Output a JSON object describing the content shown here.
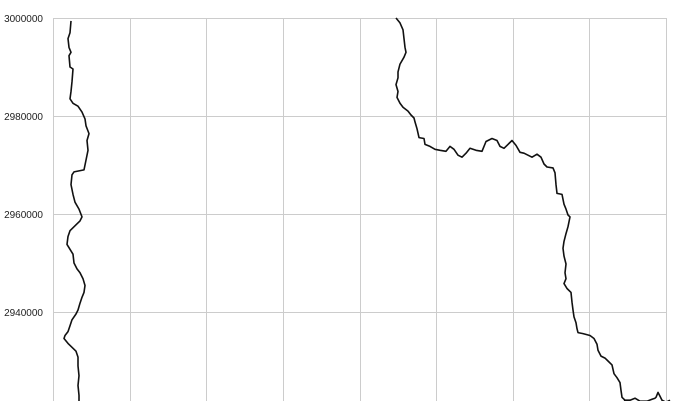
{
  "map": {
    "y_axis": {
      "range": [
        2920400,
        3000000
      ],
      "ticks": [
        {
          "value": 3000000,
          "label": "3000000"
        },
        {
          "value": 2980000,
          "label": "2980000"
        },
        {
          "value": 2960000,
          "label": "2960000"
        },
        {
          "value": 2940000,
          "label": "2940000"
        }
      ]
    },
    "x_axis": {
      "gridline_count": 8
    },
    "grid": true,
    "colors": {
      "grid": "#cccccc",
      "boundary": "#111111",
      "background": "#ffffff"
    },
    "boundaries": [
      {
        "id": "left-boundary",
        "points": [
          [
            71,
            2999400
          ],
          [
            70,
            2997000
          ],
          [
            68,
            2995800
          ],
          [
            69,
            2994000
          ],
          [
            71,
            2993000
          ],
          [
            69,
            2992300
          ],
          [
            70,
            2990000
          ],
          [
            73,
            2989600
          ],
          [
            72,
            2987000
          ],
          [
            71,
            2985000
          ],
          [
            70,
            2983500
          ],
          [
            73,
            2982600
          ],
          [
            78,
            2982000
          ],
          [
            82,
            2980800
          ],
          [
            85,
            2979400
          ],
          [
            86,
            2978000
          ],
          [
            89,
            2976400
          ],
          [
            87,
            2975000
          ],
          [
            88,
            2973000
          ],
          [
            86,
            2971000
          ],
          [
            84,
            2969000
          ],
          [
            74,
            2968600
          ],
          [
            72,
            2968000
          ],
          [
            71,
            2966000
          ],
          [
            73,
            2964000
          ],
          [
            75,
            2962400
          ],
          [
            79,
            2961000
          ],
          [
            82,
            2959400
          ],
          [
            80,
            2958600
          ],
          [
            76,
            2957800
          ],
          [
            70,
            2956600
          ],
          [
            68,
            2955400
          ],
          [
            67,
            2953800
          ],
          [
            70,
            2952800
          ],
          [
            73,
            2951800
          ],
          [
            74,
            2950000
          ],
          [
            77,
            2948800
          ],
          [
            80,
            2948000
          ],
          [
            83,
            2946800
          ],
          [
            85,
            2945400
          ],
          [
            84,
            2944000
          ],
          [
            82,
            2943000
          ],
          [
            80,
            2941800
          ],
          [
            78,
            2940400
          ],
          [
            76,
            2939600
          ],
          [
            72,
            2938400
          ],
          [
            70,
            2937200
          ],
          [
            68,
            2936000
          ],
          [
            65,
            2935200
          ],
          [
            64,
            2934600
          ],
          [
            68,
            2933600
          ],
          [
            72,
            2932800
          ],
          [
            76,
            2932000
          ],
          [
            78,
            2930800
          ],
          [
            78,
            2929000
          ],
          [
            79,
            2927000
          ],
          [
            78,
            2925000
          ],
          [
            79,
            2923000
          ],
          [
            79,
            2920400
          ]
        ]
      },
      {
        "id": "right-boundary",
        "points": [
          [
            396,
            3000000
          ],
          [
            400,
            2999000
          ],
          [
            403,
            2997600
          ],
          [
            404,
            2995800
          ],
          [
            405,
            2994000
          ],
          [
            406,
            2993000
          ],
          [
            404,
            2992000
          ],
          [
            400,
            2990600
          ],
          [
            398,
            2989000
          ],
          [
            398,
            2987800
          ],
          [
            396,
            2986400
          ],
          [
            398,
            2985000
          ],
          [
            397,
            2983800
          ],
          [
            400,
            2982600
          ],
          [
            403,
            2981800
          ],
          [
            408,
            2981000
          ],
          [
            411,
            2980200
          ],
          [
            414,
            2979600
          ],
          [
            415,
            2978800
          ],
          [
            417,
            2977400
          ],
          [
            419,
            2975600
          ],
          [
            424,
            2975400
          ],
          [
            425,
            2974200
          ],
          [
            430,
            2973800
          ],
          [
            435,
            2973200
          ],
          [
            440,
            2973000
          ],
          [
            446,
            2972800
          ],
          [
            450,
            2973800
          ],
          [
            454,
            2973200
          ],
          [
            458,
            2972000
          ],
          [
            462,
            2971600
          ],
          [
            466,
            2972400
          ],
          [
            470,
            2973400
          ],
          [
            476,
            2973000
          ],
          [
            482,
            2972800
          ],
          [
            486,
            2974800
          ],
          [
            492,
            2975400
          ],
          [
            497,
            2975000
          ],
          [
            500,
            2973800
          ],
          [
            504,
            2973400
          ],
          [
            508,
            2974200
          ],
          [
            512,
            2975000
          ],
          [
            516,
            2974000
          ],
          [
            520,
            2972600
          ],
          [
            524,
            2972400
          ],
          [
            528,
            2972000
          ],
          [
            532,
            2971600
          ],
          [
            537,
            2972200
          ],
          [
            541,
            2971600
          ],
          [
            544,
            2970200
          ],
          [
            547,
            2969600
          ],
          [
            553,
            2969400
          ],
          [
            555,
            2968400
          ],
          [
            556,
            2966000
          ],
          [
            557,
            2964200
          ],
          [
            562,
            2964000
          ],
          [
            564,
            2962000
          ],
          [
            566,
            2961000
          ],
          [
            568,
            2959800
          ],
          [
            570,
            2959400
          ],
          [
            568,
            2957400
          ],
          [
            566,
            2956000
          ],
          [
            564,
            2954400
          ],
          [
            563,
            2953000
          ],
          [
            564,
            2951400
          ],
          [
            566,
            2949800
          ],
          [
            565,
            2948000
          ],
          [
            566,
            2946800
          ],
          [
            564,
            2945800
          ],
          [
            567,
            2944800
          ],
          [
            571,
            2944000
          ],
          [
            572,
            2942000
          ],
          [
            573,
            2940400
          ],
          [
            574,
            2939000
          ],
          [
            576,
            2937800
          ],
          [
            577,
            2936600
          ],
          [
            578,
            2935800
          ],
          [
            583,
            2935600
          ],
          [
            590,
            2935200
          ],
          [
            594,
            2934600
          ],
          [
            597,
            2933400
          ],
          [
            598,
            2932200
          ],
          [
            601,
            2931000
          ],
          [
            605,
            2930600
          ],
          [
            608,
            2930000
          ],
          [
            612,
            2929200
          ],
          [
            614,
            2927400
          ],
          [
            617,
            2926600
          ],
          [
            620,
            2925600
          ],
          [
            621,
            2924000
          ],
          [
            622,
            2922600
          ],
          [
            625,
            2922000
          ],
          [
            630,
            2922000
          ],
          [
            635,
            2922400
          ],
          [
            640,
            2921800
          ],
          [
            647,
            2921800
          ],
          [
            652,
            2922200
          ],
          [
            655,
            2922400
          ],
          [
            656,
            2922600
          ],
          [
            658,
            2923600
          ],
          [
            660,
            2922800
          ],
          [
            662,
            2922000
          ],
          [
            666,
            2921600
          ],
          [
            668,
            2921800
          ],
          [
            670,
            2922000
          ]
        ],
        "tail": [
          [
            625,
            2922000
          ],
          [
            623,
            2921200
          ],
          [
            622,
            2920400
          ]
        ]
      }
    ]
  }
}
